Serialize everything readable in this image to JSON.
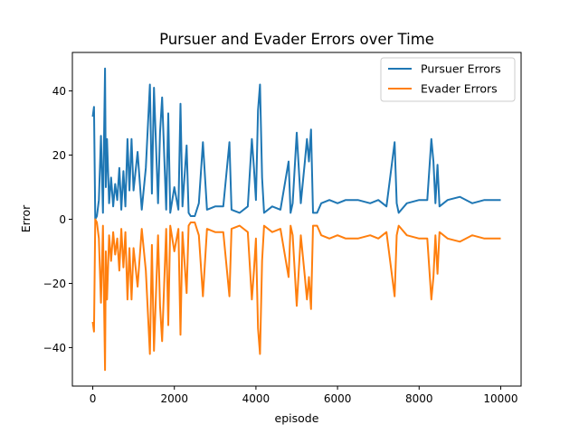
{
  "chart_data": {
    "type": "line",
    "title": "Pursuer and Evader Errors over Time",
    "xlabel": "episode",
    "ylabel": "Error",
    "xlim": [
      -500,
      10500
    ],
    "ylim": [
      -52,
      52
    ],
    "xticks": [
      0,
      2000,
      4000,
      6000,
      8000,
      10000
    ],
    "yticks": [
      -40,
      -20,
      0,
      20,
      40
    ],
    "grid": false,
    "legend_position": "top-right",
    "series": [
      {
        "name": "Pursuer Errors",
        "color": "#1f77b4",
        "x": [
          0,
          30,
          60,
          100,
          150,
          200,
          250,
          300,
          320,
          350,
          400,
          450,
          500,
          550,
          600,
          650,
          700,
          750,
          800,
          850,
          900,
          950,
          1000,
          1100,
          1200,
          1300,
          1400,
          1450,
          1500,
          1600,
          1650,
          1700,
          1800,
          1850,
          1900,
          2000,
          2100,
          2150,
          2200,
          2300,
          2350,
          2400,
          2500,
          2600,
          2700,
          2800,
          3000,
          3200,
          3350,
          3400,
          3600,
          3800,
          3900,
          3950,
          4000,
          4050,
          4100,
          4150,
          4200,
          4400,
          4600,
          4800,
          4850,
          4900,
          5000,
          5100,
          5200,
          5250,
          5300,
          5350,
          5400,
          5500,
          5600,
          5800,
          6000,
          6200,
          6500,
          6800,
          7000,
          7200,
          7400,
          7450,
          7500,
          7700,
          8000,
          8200,
          8300,
          8350,
          8400,
          8450,
          8500,
          8700,
          9000,
          9300,
          9600,
          9800,
          10000
        ],
        "values": [
          32,
          35,
          0,
          1,
          6,
          26,
          2,
          47,
          10,
          25,
          5,
          13,
          4,
          11,
          6,
          16,
          3,
          15,
          4,
          25,
          9,
          25,
          9,
          21,
          3,
          16,
          42,
          8,
          41,
          5,
          27,
          38,
          3,
          33,
          2,
          10,
          3,
          36,
          4,
          23,
          2,
          1,
          1,
          5,
          24,
          3,
          4,
          4,
          24,
          3,
          2,
          4,
          25,
          16,
          6,
          34,
          42,
          13,
          2,
          4,
          3,
          18,
          2,
          5,
          27,
          5,
          18,
          25,
          18,
          28,
          2,
          2,
          5,
          6,
          5,
          6,
          6,
          5,
          6,
          4,
          24,
          5,
          2,
          5,
          6,
          6,
          25,
          18,
          5,
          17,
          4,
          6,
          7,
          5,
          6,
          6,
          6
        ]
      },
      {
        "name": "Evader Errors",
        "color": "#ff7f0e",
        "x": [
          0,
          30,
          60,
          100,
          150,
          200,
          250,
          300,
          320,
          350,
          400,
          450,
          500,
          550,
          600,
          650,
          700,
          750,
          800,
          850,
          900,
          950,
          1000,
          1100,
          1200,
          1300,
          1400,
          1450,
          1500,
          1600,
          1650,
          1700,
          1800,
          1850,
          1900,
          2000,
          2100,
          2150,
          2200,
          2300,
          2350,
          2400,
          2500,
          2600,
          2700,
          2800,
          3000,
          3200,
          3350,
          3400,
          3600,
          3800,
          3900,
          3950,
          4000,
          4050,
          4100,
          4150,
          4200,
          4400,
          4600,
          4800,
          4850,
          4900,
          5000,
          5100,
          5200,
          5250,
          5300,
          5350,
          5400,
          5500,
          5600,
          5800,
          6000,
          6200,
          6500,
          6800,
          7000,
          7200,
          7400,
          7450,
          7500,
          7700,
          8000,
          8200,
          8300,
          8350,
          8400,
          8450,
          8500,
          8700,
          9000,
          9300,
          9600,
          9800,
          10000
        ],
        "values": [
          -32,
          -35,
          0,
          -1,
          -6,
          -26,
          -2,
          -47,
          -10,
          -25,
          -5,
          -13,
          -4,
          -11,
          -6,
          -16,
          -3,
          -15,
          -4,
          -25,
          -9,
          -25,
          -9,
          -21,
          -3,
          -16,
          -42,
          -8,
          -41,
          -5,
          -27,
          -38,
          -3,
          -33,
          -2,
          -10,
          -3,
          -36,
          -4,
          -23,
          -2,
          -1,
          -1,
          -5,
          -24,
          -3,
          -4,
          -4,
          -24,
          -3,
          -2,
          -4,
          -25,
          -16,
          -6,
          -34,
          -42,
          -13,
          -2,
          -4,
          -3,
          -18,
          -2,
          -5,
          -27,
          -5,
          -18,
          -25,
          -18,
          -28,
          -2,
          -2,
          -5,
          -6,
          -5,
          -6,
          -6,
          -5,
          -6,
          -4,
          -24,
          -5,
          -2,
          -5,
          -6,
          -6,
          -25,
          -18,
          -5,
          -17,
          -4,
          -6,
          -7,
          -5,
          -6,
          -6,
          -6
        ]
      }
    ]
  }
}
